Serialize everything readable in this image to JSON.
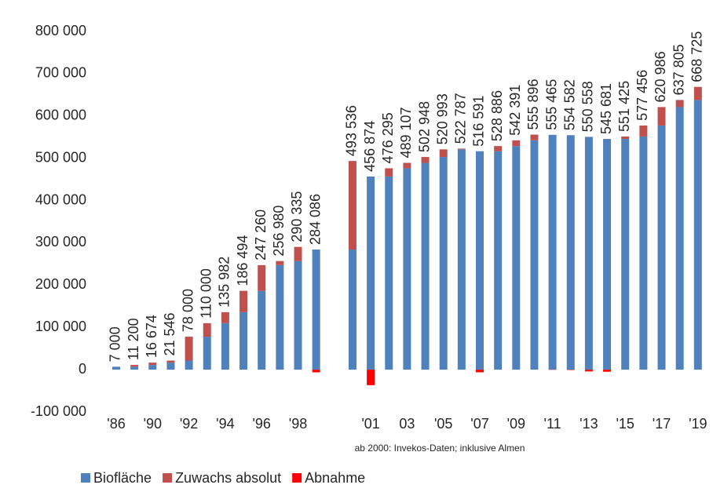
{
  "chart_data": {
    "type": "stacked_bar",
    "categories": [
      "'86",
      null,
      "'90",
      null,
      "'92",
      null,
      "'94",
      null,
      "'96",
      null,
      "'98",
      null,
      null,
      null,
      "'01",
      null,
      "03",
      null,
      "'05",
      null,
      "'07",
      null,
      "'09",
      null,
      "'11",
      null,
      "'13",
      null,
      "'15",
      null,
      "'17",
      null,
      "'19"
    ],
    "series": [
      {
        "name": "Biofläche",
        "color": "#4f81bd",
        "values": [
          7000,
          7000,
          11200,
          16674,
          21546,
          78000,
          110000,
          135982,
          186494,
          247260,
          256980,
          284086,
          null,
          284086,
          456874,
          456874,
          476295,
          489107,
          502948,
          520993,
          516591,
          516591,
          528886,
          542391,
          555465,
          554582,
          550558,
          545681,
          545681,
          551425,
          577456,
          620986,
          637805
        ]
      },
      {
        "name": "Zuwachs absolut",
        "color": "#c0504d",
        "values": [
          0,
          4200,
          5474,
          4872,
          56454,
          32000,
          25982,
          50512,
          60766,
          9720,
          33355,
          0,
          null,
          209450,
          0,
          19421,
          12812,
          13841,
          18045,
          1794,
          0,
          12295,
          13505,
          13505,
          0,
          0,
          0,
          0,
          5744,
          26031,
          43530,
          16819,
          30920
        ]
      },
      {
        "name": "Abnahme",
        "color": "#ff0000",
        "values": [
          0,
          0,
          0,
          0,
          0,
          0,
          0,
          0,
          0,
          0,
          0,
          -6249,
          null,
          0,
          -36662,
          0,
          0,
          0,
          0,
          0,
          -6196,
          0,
          0,
          0,
          -431,
          -883,
          -4024,
          -4877,
          0,
          0,
          0,
          0,
          0
        ]
      }
    ],
    "data_labels": {
      "values": [
        7000,
        11200,
        16674,
        21546,
        78000,
        110000,
        135982,
        186494,
        247260,
        256980,
        290335,
        284086,
        null,
        493536,
        456874,
        476295,
        489107,
        502948,
        520993,
        522787,
        516591,
        528886,
        542391,
        555896,
        555465,
        554582,
        550558,
        545681,
        551425,
        577456,
        620986,
        637805,
        668725
      ],
      "value_labels": [
        "7 000",
        "11 200",
        "16 674",
        "21 546",
        "78 000",
        "110 000",
        "135 982",
        "186 494",
        "247 260",
        "256 980",
        "290 335",
        "284 086",
        null,
        "493 536",
        "456 874",
        "476 295",
        "489 107",
        "502 948",
        "520 993",
        "522 787",
        "516 591",
        "528 886",
        "542 391",
        "555 896",
        "555 465",
        "554 582",
        "550 558",
        "545 681",
        "551 425",
        "577 456",
        "620 986",
        "637 805",
        "668 725"
      ]
    },
    "annotation": "ab 2000: Invekos-Daten; inklusive Almen",
    "ylim": [
      -100000,
      800000
    ],
    "yticks": [
      {
        "value": -100000,
        "label": "-100 000"
      },
      0,
      {
        "value": 100000,
        "label": "100 000"
      },
      {
        "value": 200000,
        "label": "200 000"
      },
      {
        "value": 300000,
        "label": "300 000"
      },
      {
        "value": 400000,
        "label": "400 000"
      },
      {
        "value": 500000,
        "label": "500 000"
      },
      {
        "value": 600000,
        "label": "600 000"
      },
      {
        "value": 700000,
        "label": "700 000"
      },
      {
        "value": 800000,
        "label": "800 000"
      }
    ],
    "grid": false,
    "legend": "bottom-left"
  }
}
